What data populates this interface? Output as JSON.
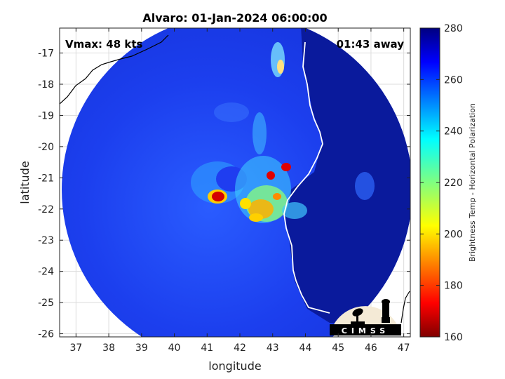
{
  "chart_data": {
    "type": "heatmap",
    "title": "Alvaro: 01-Jan-2024 06:00:00",
    "xlabel": "longitude",
    "ylabel": "latitude",
    "xlim": [
      36.5,
      47.2
    ],
    "ylim": [
      -26.1,
      -16.2
    ],
    "x_ticks": [
      37,
      38,
      39,
      40,
      41,
      42,
      43,
      44,
      45,
      46,
      47
    ],
    "y_ticks": [
      -17,
      -18,
      -19,
      -20,
      -21,
      -22,
      -23,
      -24,
      -25,
      -26
    ],
    "grid": true,
    "annotations": {
      "vmax": "Vmax: 48 kts",
      "time_offset": "01:43 away"
    },
    "colorbar": {
      "label": "Brightness Temp - Horizontal Polarization",
      "range": [
        160,
        280
      ],
      "ticks": [
        280,
        260,
        240,
        220,
        200,
        180,
        160
      ],
      "colormap": "jet"
    },
    "logo_text": "CIMSS"
  },
  "colors": {
    "ocean_outer": "#0a1a9c",
    "ocean_field": "#1f3df0",
    "coastline": "#ffffff",
    "mainland_coast": "#000000"
  }
}
